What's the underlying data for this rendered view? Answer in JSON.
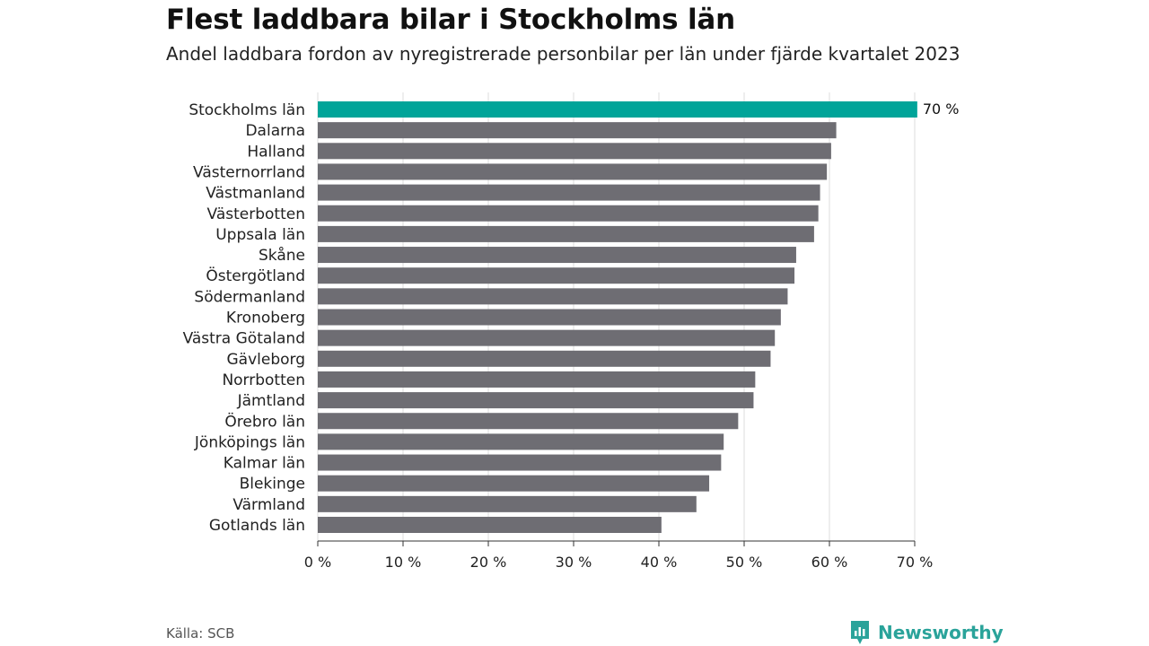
{
  "title": "Flest laddbara bilar i Stockholms län",
  "subtitle": "Andel laddbara fordon av nyregistrerade personbilar per län under fjärde kvartalet 2023",
  "source": "Källa: SCB",
  "brand": {
    "name": "Newsworthy",
    "icon": "newsworthy-logo-icon"
  },
  "colors": {
    "highlight": "#00a499",
    "bar": "#6e6d73",
    "grid": "#dddddd",
    "axis": "#333333"
  },
  "chart_data": {
    "type": "bar",
    "orientation": "horizontal",
    "title": "Flest laddbara bilar i Stockholms län",
    "subtitle": "Andel laddbara fordon av nyregistrerade personbilar per län under fjärde kvartalet 2023",
    "xlabel": "",
    "ylabel": "",
    "xlim": [
      0,
      70
    ],
    "grid": true,
    "highlight_category": "Stockholms län",
    "value_labels": {
      "Stockholms län": "70 %"
    },
    "ticks": [
      {
        "value": 0,
        "label": "0 %"
      },
      {
        "value": 10,
        "label": "10 %"
      },
      {
        "value": 20,
        "label": "20 %"
      },
      {
        "value": 30,
        "label": "30 %"
      },
      {
        "value": 40,
        "label": "40 %"
      },
      {
        "value": 50,
        "label": "50 %"
      },
      {
        "value": 60,
        "label": "60 %"
      },
      {
        "value": 70,
        "label": "70 %"
      }
    ],
    "categories": [
      "Stockholms län",
      "Dalarna",
      "Halland",
      "Västernorrland",
      "Västmanland",
      "Västerbotten",
      "Uppsala län",
      "Skåne",
      "Östergötland",
      "Södermanland",
      "Kronoberg",
      "Västra Götaland",
      "Gävleborg",
      "Norrbotten",
      "Jämtland",
      "Örebro län",
      "Jönköpings län",
      "Kalmar län",
      "Blekinge",
      "Värmland",
      "Gotlands län"
    ],
    "values": [
      70.3,
      60.8,
      60.2,
      59.7,
      58.9,
      58.7,
      58.2,
      56.1,
      55.9,
      55.1,
      54.3,
      53.6,
      53.1,
      51.3,
      51.1,
      49.3,
      47.6,
      47.3,
      45.9,
      44.4,
      40.3
    ]
  }
}
